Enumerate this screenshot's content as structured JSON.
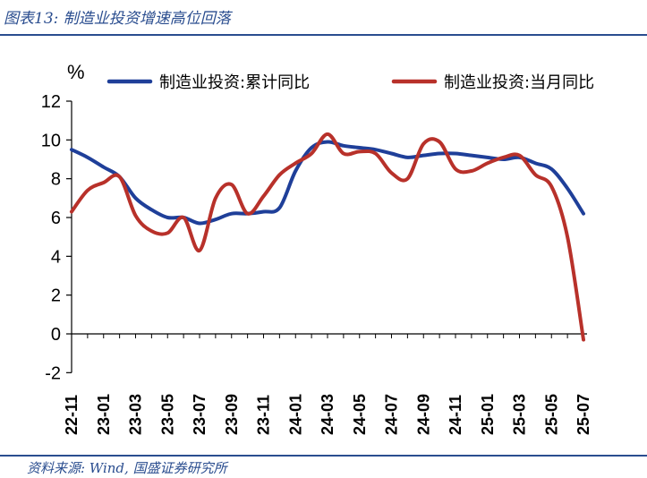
{
  "header": {
    "title": "图表13:  制造业投资增速高位回落"
  },
  "footer": {
    "source": "资料来源:  Wind, 国盛证券研究所"
  },
  "colors": {
    "accent": "#2a4d8f",
    "cumulative": "#1f3f99",
    "monthly": "#b8312a"
  },
  "chart_data": {
    "type": "line",
    "title": "",
    "ylabel": "%",
    "xlabel": "",
    "ylim": [
      -2,
      12
    ],
    "yticks": [
      -2,
      0,
      2,
      4,
      6,
      8,
      10,
      12
    ],
    "legend_position": "top",
    "grid": false,
    "x": [
      "22-11",
      "22-12",
      "23-01",
      "23-02",
      "23-03",
      "23-04",
      "23-05",
      "23-06",
      "23-07",
      "23-08",
      "23-09",
      "23-10",
      "23-11",
      "23-12",
      "24-01",
      "24-02",
      "24-03",
      "24-04",
      "24-05",
      "24-06",
      "24-07",
      "24-08",
      "24-09",
      "24-10",
      "24-11",
      "24-12",
      "25-01",
      "25-02",
      "25-03",
      "25-04",
      "25-05",
      "25-06",
      "25-07"
    ],
    "x_tick_labels": [
      "22-11",
      "23-01",
      "23-03",
      "23-05",
      "23-07",
      "23-09",
      "23-11",
      "24-01",
      "24-03",
      "24-05",
      "24-07",
      "24-09",
      "24-11",
      "25-01",
      "25-03",
      "25-05",
      "25-07"
    ],
    "series": [
      {
        "name": "制造业投资:累计同比",
        "values": [
          9.5,
          9.1,
          8.6,
          8.1,
          7.0,
          6.4,
          6.0,
          6.0,
          5.7,
          5.9,
          6.2,
          6.2,
          6.3,
          6.5,
          8.4,
          9.6,
          9.9,
          9.7,
          9.6,
          9.5,
          9.3,
          9.1,
          9.2,
          9.3,
          9.3,
          9.2,
          9.1,
          9.0,
          9.1,
          8.8,
          8.5,
          7.5,
          6.2
        ]
      },
      {
        "name": "制造业投资:当月同比",
        "values": [
          6.3,
          7.4,
          7.8,
          8.1,
          6.1,
          5.3,
          5.2,
          6.0,
          4.3,
          7.0,
          7.7,
          6.2,
          7.1,
          8.2,
          8.8,
          9.3,
          10.3,
          9.3,
          9.4,
          9.3,
          8.3,
          8.0,
          9.8,
          9.9,
          8.5,
          8.4,
          8.8,
          9.1,
          9.2,
          8.2,
          7.6,
          5.0,
          -0.3
        ]
      }
    ]
  }
}
